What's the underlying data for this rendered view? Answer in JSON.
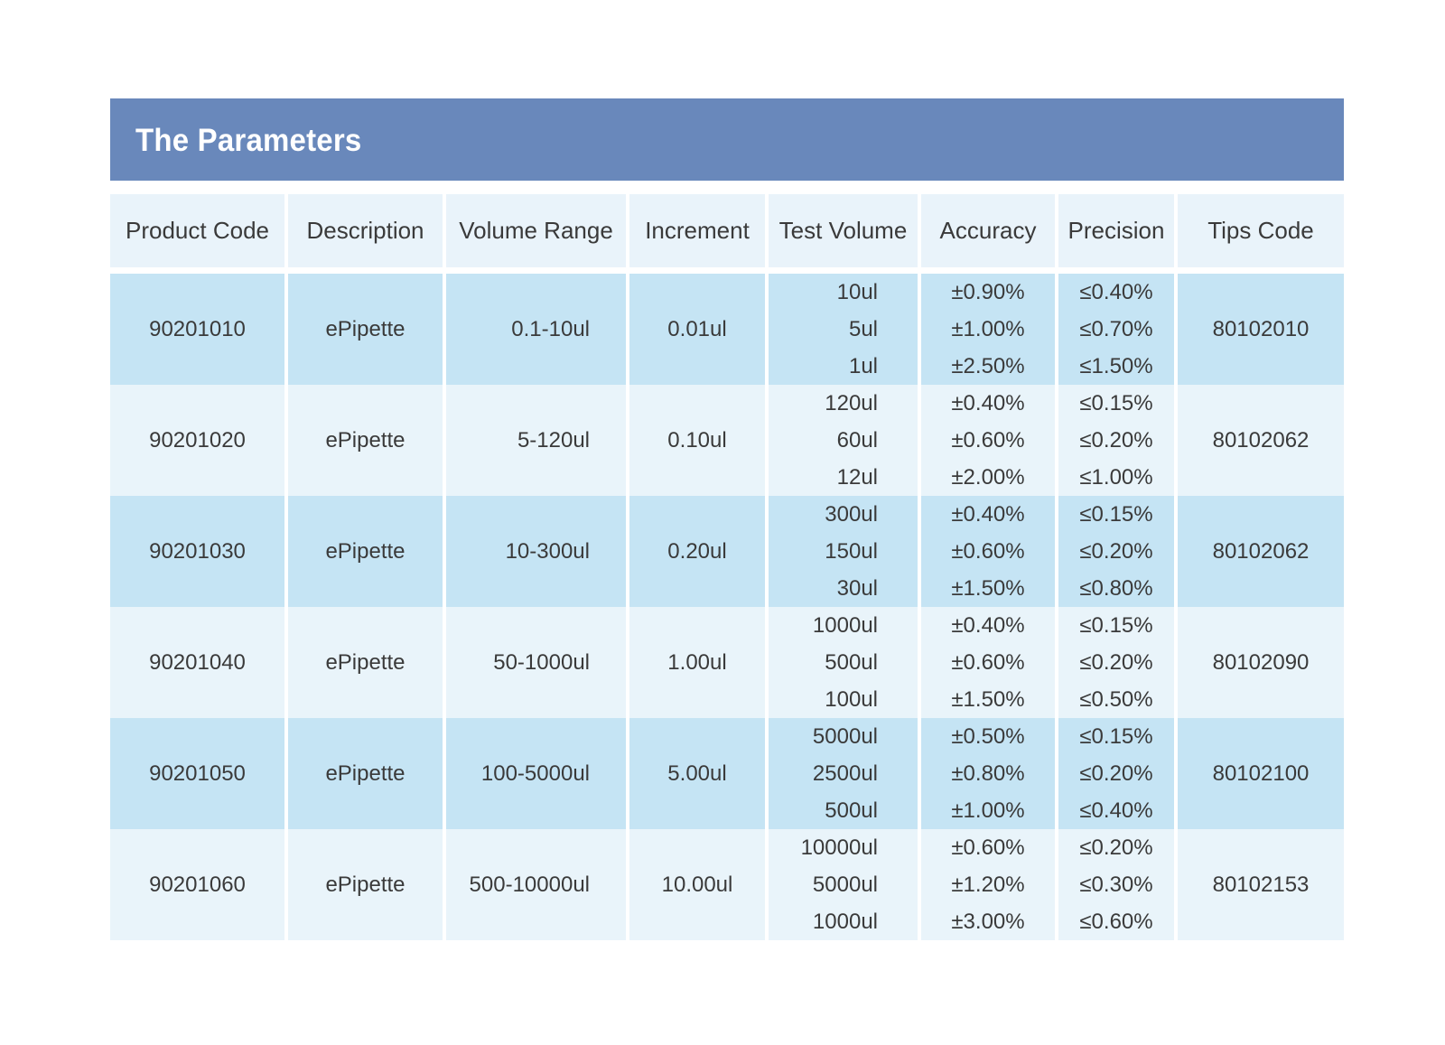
{
  "title": "The Parameters",
  "columns": [
    "Product Code",
    "Description",
    "Volume Range",
    "Increment",
    "Test Volume",
    "Accuracy",
    "Precision",
    "Tips Code"
  ],
  "rows": [
    {
      "product_code": "90201010",
      "description": "ePipette",
      "volume_range": "0.1-10ul",
      "increment": "0.01ul",
      "test_volume": [
        "10ul",
        "5ul",
        "1ul"
      ],
      "accuracy": [
        "±0.90%",
        "±1.00%",
        "±2.50%"
      ],
      "precision": [
        "≤0.40%",
        "≤0.70%",
        "≤1.50%"
      ],
      "tips_code": "80102010"
    },
    {
      "product_code": "90201020",
      "description": "ePipette",
      "volume_range": "5-120ul",
      "increment": "0.10ul",
      "test_volume": [
        "120ul",
        "60ul",
        "12ul"
      ],
      "accuracy": [
        "±0.40%",
        "±0.60%",
        "±2.00%"
      ],
      "precision": [
        "≤0.15%",
        "≤0.20%",
        "≤1.00%"
      ],
      "tips_code": "80102062"
    },
    {
      "product_code": "90201030",
      "description": "ePipette",
      "volume_range": "10-300ul",
      "increment": "0.20ul",
      "test_volume": [
        "300ul",
        "150ul",
        "30ul"
      ],
      "accuracy": [
        "±0.40%",
        "±0.60%",
        "±1.50%"
      ],
      "precision": [
        "≤0.15%",
        "≤0.20%",
        "≤0.80%"
      ],
      "tips_code": "80102062"
    },
    {
      "product_code": "90201040",
      "description": "ePipette",
      "volume_range": "50-1000ul",
      "increment": "1.00ul",
      "test_volume": [
        "1000ul",
        "500ul",
        "100ul"
      ],
      "accuracy": [
        "±0.40%",
        "±0.60%",
        "±1.50%"
      ],
      "precision": [
        "≤0.15%",
        "≤0.20%",
        "≤0.50%"
      ],
      "tips_code": "80102090"
    },
    {
      "product_code": "90201050",
      "description": "ePipette",
      "volume_range": "100-5000ul",
      "increment": "5.00ul",
      "test_volume": [
        "5000ul",
        "2500ul",
        "500ul"
      ],
      "accuracy": [
        "±0.50%",
        "±0.80%",
        "±1.00%"
      ],
      "precision": [
        "≤0.15%",
        "≤0.20%",
        "≤0.40%"
      ],
      "tips_code": "80102100"
    },
    {
      "product_code": "90201060",
      "description": "ePipette",
      "volume_range": "500-10000ul",
      "increment": "10.00ul",
      "test_volume": [
        "10000ul",
        "5000ul",
        "1000ul"
      ],
      "accuracy": [
        "±0.60%",
        "±1.20%",
        "±3.00%"
      ],
      "precision": [
        "≤0.20%",
        "≤0.30%",
        "≤0.60%"
      ],
      "tips_code": "80102153"
    }
  ],
  "colors": {
    "banner": "#6988bb",
    "header_bg": "#e9f3fa",
    "band_dark": "#c5e4f4",
    "band_light": "#e9f4fa",
    "text": "#3a3a3a"
  }
}
